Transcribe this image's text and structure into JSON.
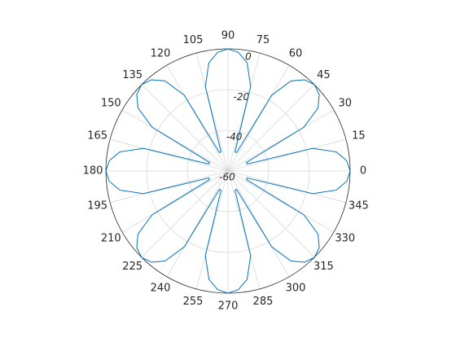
{
  "chart_data": {
    "type": "polar",
    "theta": [
      0,
      5,
      10,
      15,
      20,
      25,
      30,
      35,
      40,
      45,
      50,
      55,
      60,
      65,
      70,
      75,
      80,
      85,
      90,
      95,
      100,
      105,
      110,
      115,
      120,
      125,
      130,
      135,
      140,
      145,
      150,
      155,
      160,
      165,
      170,
      175,
      180,
      185,
      190,
      195,
      200,
      205,
      210,
      215,
      220,
      225,
      230,
      235,
      240,
      245,
      250,
      255,
      260,
      265,
      270,
      275,
      280,
      285,
      290,
      295,
      300,
      305,
      310,
      315,
      320,
      325,
      330,
      335,
      340,
      345,
      350,
      355
    ],
    "series": [
      {
        "color": "#0072bd",
        "values": [
          0,
          -1.5,
          -6,
          -17,
          -50,
          -50,
          -17,
          -6,
          -1.5,
          0,
          -1.5,
          -6,
          -17,
          -50,
          -50,
          -17,
          -6,
          -1.5,
          0,
          -1.5,
          -6,
          -17,
          -50,
          -50,
          -17,
          -6,
          -1.5,
          0,
          -1.5,
          -6,
          -17,
          -50,
          -50,
          -17,
          -6,
          -1.5,
          0,
          -1.5,
          -6,
          -17,
          -50,
          -50,
          -17,
          -6,
          -1.5,
          0,
          -1.5,
          -6,
          -17,
          -50,
          -50,
          -17,
          -6,
          -1.5,
          0,
          -1.5,
          -6,
          -17,
          -50,
          -50,
          -17,
          -6,
          -1.5,
          0,
          -1.5,
          -6,
          -17,
          -50,
          -50,
          -17,
          -6,
          -1.5
        ]
      }
    ],
    "rlim": [
      -60,
      0
    ],
    "rticks": [
      -60,
      -40,
      -20,
      0
    ],
    "thetaticks": [
      0,
      15,
      30,
      45,
      60,
      75,
      90,
      105,
      120,
      135,
      150,
      165,
      180,
      195,
      210,
      225,
      240,
      255,
      270,
      285,
      300,
      315,
      330,
      345
    ],
    "grid": true
  }
}
